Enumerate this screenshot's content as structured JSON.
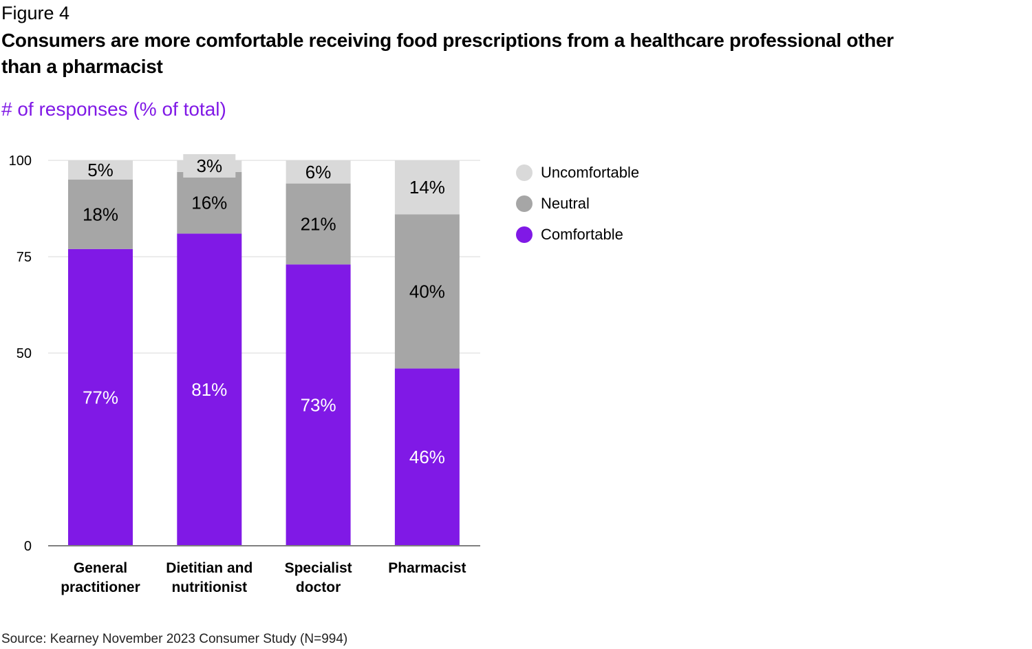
{
  "figure_label": "Figure 4",
  "title": "Consumers are more comfortable receiving food prescriptions from a healthcare professional other than a pharmacist",
  "subtitle": "# of responses (% of total)",
  "source": "Source: Kearney November 2023 Consumer Study (N=994)",
  "colors": {
    "comfortable": "#8019e6",
    "neutral": "#a6a6a6",
    "uncomfortable": "#d9d9d9",
    "grid": "#d9d9d9",
    "axis": "#7f7f7f"
  },
  "legend": [
    {
      "label": "Uncomfortable",
      "color_key": "uncomfortable"
    },
    {
      "label": "Neutral",
      "color_key": "neutral"
    },
    {
      "label": "Comfortable",
      "color_key": "comfortable"
    }
  ],
  "chart_data": {
    "type": "bar",
    "stacked": true,
    "categories": [
      [
        "General",
        "practitioner"
      ],
      [
        "Dietitian and",
        "nutritionist"
      ],
      [
        "Specialist",
        "doctor"
      ],
      [
        "Pharmacist"
      ]
    ],
    "series": [
      {
        "name": "Comfortable",
        "color_key": "comfortable",
        "values": [
          77,
          81,
          73,
          46
        ],
        "labels": [
          "77%",
          "81%",
          "73%",
          "46%"
        ]
      },
      {
        "name": "Neutral",
        "color_key": "neutral",
        "values": [
          18,
          16,
          21,
          40
        ],
        "labels": [
          "18%",
          "16%",
          "21%",
          "40%"
        ]
      },
      {
        "name": "Uncomfortable",
        "color_key": "uncomfortable",
        "values": [
          5,
          3,
          6,
          14
        ],
        "labels": [
          "5%",
          "3%",
          "6%",
          "14%"
        ]
      }
    ],
    "yticks": [
      0,
      50,
      75,
      100
    ],
    "ylim": [
      0,
      100
    ],
    "grid": true,
    "legend_position": "right"
  }
}
